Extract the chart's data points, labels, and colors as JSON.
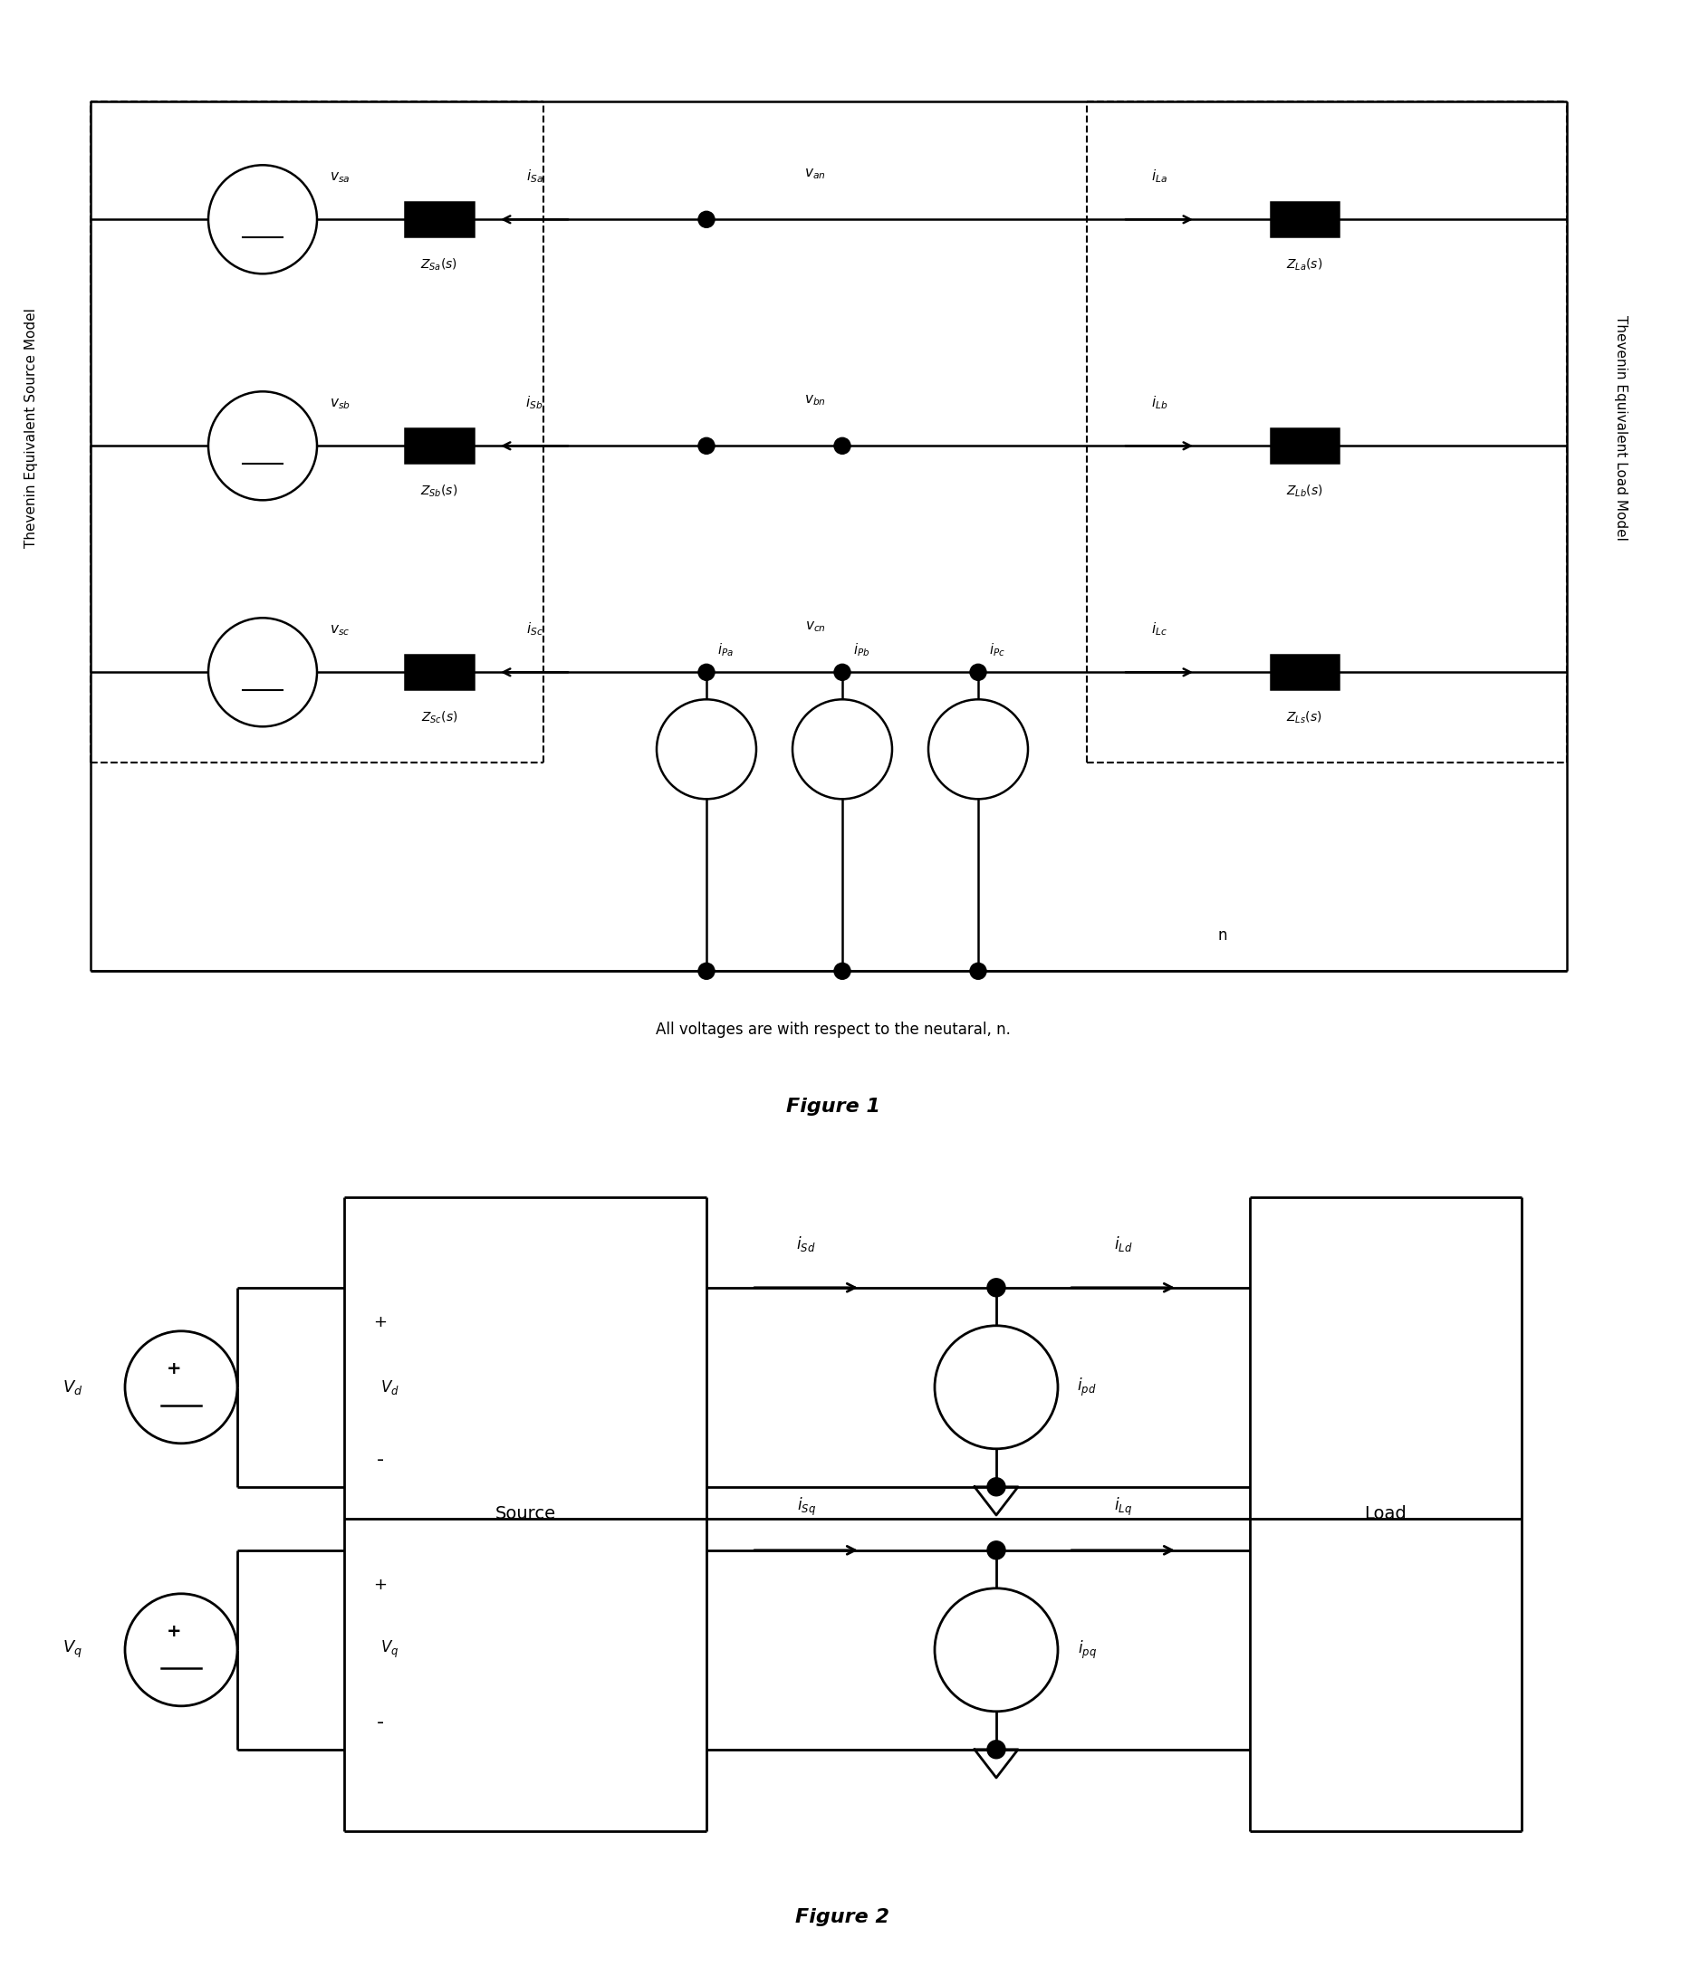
{
  "fig_width": 18.77,
  "fig_height": 21.72,
  "bg_color": "#ffffff",
  "fig1_caption": "Figure 1",
  "fig2_caption": "Figure 2",
  "fig1_note": "All voltages are with respect to the neutaral, n.",
  "fig1_label_left": "Thevenin Equivalent Source Model",
  "fig1_label_right": "Thevenin Equivalent Load Model"
}
